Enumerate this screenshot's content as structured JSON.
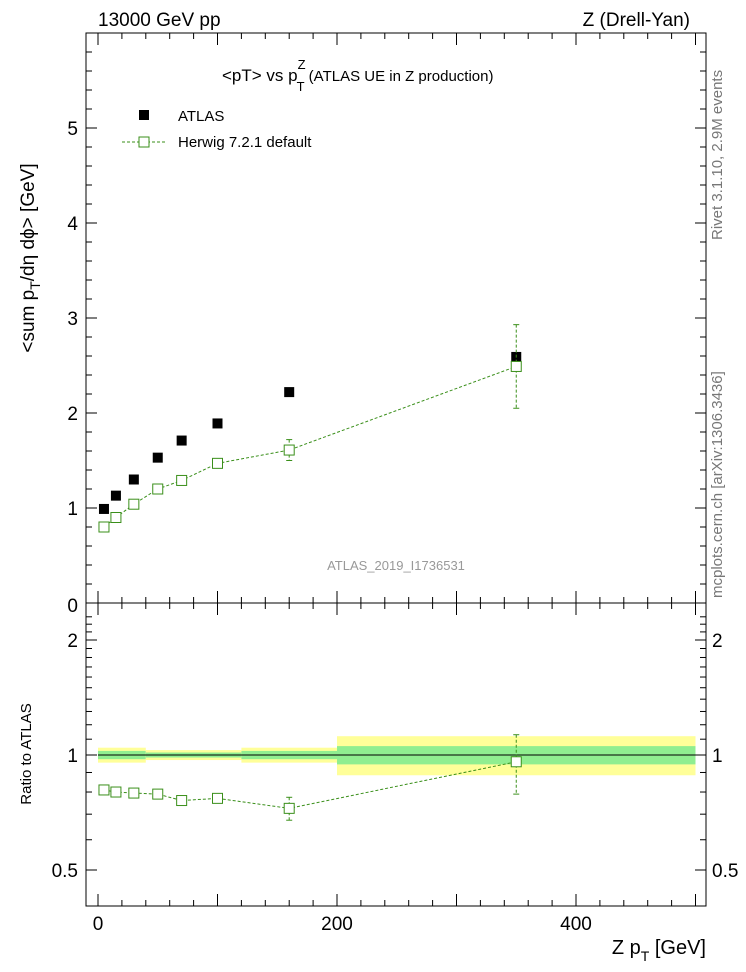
{
  "header": {
    "left": "13000 GeV pp",
    "right": "Z (Drell-Yan)"
  },
  "side_labels": {
    "rivet": "Rivet 3.1.10, 2.9M events",
    "mcplots": "mcplots.cern.ch [arXiv:1306.3436]"
  },
  "colors": {
    "data": "#000000",
    "mc": "#3a8f1a",
    "band_inner": "#90ee90",
    "band_outer": "#ffff99"
  },
  "chart_data": [
    {
      "type": "scatter",
      "title_main": "<pT> vs p",
      "title_sup": "Z",
      "title_sub": "T",
      "title_tail": " (ATLAS UE in Z production)",
      "ylabel_pre": "<sum p",
      "ylabel_sub": "T",
      "ylabel_post": "/dη dϕ> [GeV]",
      "watermark": "ATLAS_2019_I1736531",
      "xlim": [
        -10,
        510
      ],
      "ylim": [
        0,
        6
      ],
      "yticks": [
        1,
        2,
        3,
        4,
        5
      ],
      "ytick_labels": [
        "1",
        "2",
        "3",
        "4",
        "5"
      ],
      "cut_label": "0",
      "legend": {
        "placement": "top-left",
        "data": "ATLAS",
        "mc": "Herwig 7.2.1 default"
      },
      "series": [
        {
          "name": "ATLAS",
          "x": [
            5,
            15,
            30,
            50,
            70,
            100,
            160,
            350
          ],
          "xlow": [
            0,
            10,
            20,
            40,
            60,
            80,
            120,
            200
          ],
          "xhigh": [
            10,
            20,
            40,
            60,
            80,
            120,
            200,
            500
          ],
          "y": [
            0.99,
            1.13,
            1.3,
            1.53,
            1.71,
            1.89,
            2.22,
            2.59
          ]
        },
        {
          "name": "Herwig 7.2.1 default",
          "x": [
            5,
            15,
            30,
            50,
            70,
            100,
            160,
            350
          ],
          "y": [
            0.8,
            0.9,
            1.04,
            1.2,
            1.29,
            1.47,
            1.61,
            2.49
          ],
          "yerr": [
            0.006,
            0.008,
            0.01,
            0.015,
            0.02,
            0.03,
            0.11,
            0.44
          ]
        }
      ]
    },
    {
      "type": "scatter",
      "ylabel": "Ratio to ATLAS",
      "xlabel_pre": "Z p",
      "xlabel_sub": "T",
      "xlabel_post": " [GeV]",
      "xticks": [
        0,
        200,
        400
      ],
      "xtick_labels": [
        "0",
        "200",
        "400"
      ],
      "ylim": [
        0.37,
        2.35
      ],
      "yticks": [
        0.5,
        1,
        2
      ],
      "ytick_labels": [
        "0.5",
        "1",
        "2"
      ],
      "bands": [
        {
          "xlow": 0,
          "xhigh": 40,
          "inner": [
            0.975,
            1.025
          ],
          "outer": [
            0.955,
            1.045
          ]
        },
        {
          "xlow": 40,
          "xhigh": 120,
          "inner": [
            0.985,
            1.015
          ],
          "outer": [
            0.97,
            1.03
          ]
        },
        {
          "xlow": 120,
          "xhigh": 200,
          "inner": [
            0.975,
            1.025
          ],
          "outer": [
            0.955,
            1.045
          ]
        },
        {
          "xlow": 200,
          "xhigh": 500,
          "inner": [
            0.945,
            1.055
          ],
          "outer": [
            0.885,
            1.12
          ]
        }
      ],
      "series": [
        {
          "name": "Herwig 7.2.1 default / ATLAS",
          "x": [
            5,
            15,
            30,
            50,
            70,
            100,
            160,
            350
          ],
          "y": [
            0.81,
            0.8,
            0.795,
            0.79,
            0.76,
            0.77,
            0.725,
            0.96
          ],
          "yerr": [
            0.006,
            0.008,
            0.01,
            0.01,
            0.012,
            0.015,
            0.05,
            0.17
          ]
        }
      ]
    }
  ]
}
